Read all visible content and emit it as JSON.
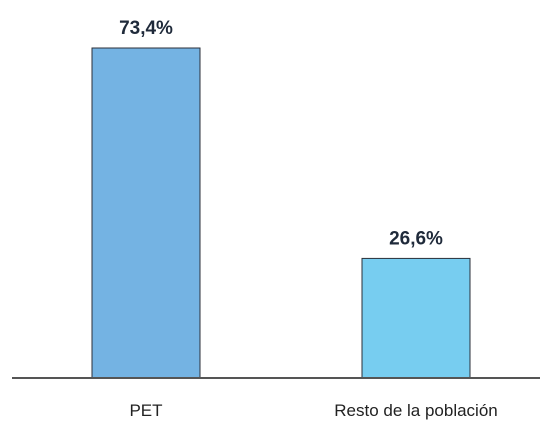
{
  "chart_data": {
    "type": "bar",
    "title": "",
    "xlabel": "",
    "ylabel": "",
    "categories": [
      "PET",
      "Resto de la población"
    ],
    "values": [
      73.4,
      26.6
    ],
    "value_labels": [
      "73,4%",
      "26,6%"
    ],
    "ylim": [
      0,
      80
    ],
    "grid": false,
    "legend": "none",
    "colors": {
      "bars": [
        "#74b3e3",
        "#77cdf0"
      ],
      "bar_outline": "#2b2f38",
      "axis": "#555555"
    }
  }
}
